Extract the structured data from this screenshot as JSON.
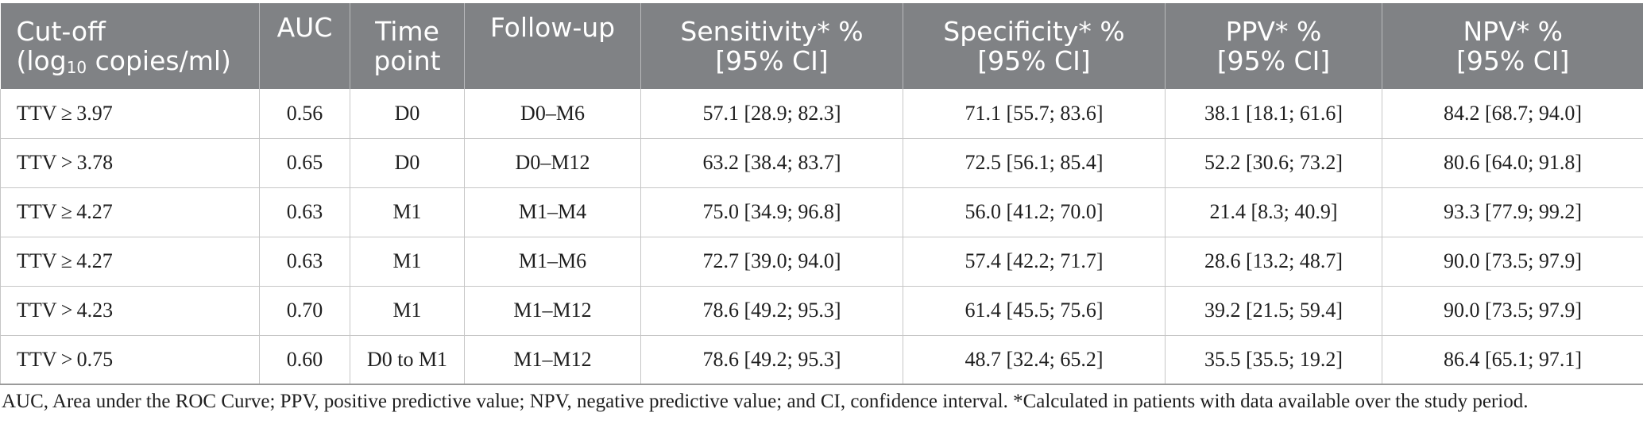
{
  "table": {
    "headers": [
      {
        "line1": "Cut-off",
        "line2_prefix": "(log",
        "line2_sub": "10",
        "line2_suffix": " copies/ml)"
      },
      {
        "line1": "AUC",
        "line2": ""
      },
      {
        "line1": "Time",
        "line2": "point"
      },
      {
        "line1": "Follow-up",
        "line2": ""
      },
      {
        "line1": "Sensitivity* %",
        "line2": "[95% CI]"
      },
      {
        "line1": "Specificity* %",
        "line2": "[95% CI]"
      },
      {
        "line1": "PPV* %",
        "line2": "[95% CI]"
      },
      {
        "line1": "NPV* %",
        "line2": "[95% CI]"
      }
    ],
    "rows": [
      [
        "TTV ≥ 3.97",
        "0.56",
        "D0",
        "D0–M6",
        "57.1 [28.9; 82.3]",
        "71.1 [55.7; 83.6]",
        "38.1 [18.1; 61.6]",
        "84.2 [68.7; 94.0]"
      ],
      [
        "TTV > 3.78",
        "0.65",
        "D0",
        "D0–M12",
        "63.2 [38.4; 83.7]",
        "72.5 [56.1; 85.4]",
        "52.2 [30.6; 73.2]",
        "80.6 [64.0; 91.8]"
      ],
      [
        "TTV ≥ 4.27",
        "0.63",
        "M1",
        "M1–M4",
        "75.0 [34.9; 96.8]",
        "56.0 [41.2; 70.0]",
        "21.4 [8.3; 40.9]",
        "93.3 [77.9; 99.2]"
      ],
      [
        "TTV ≥ 4.27",
        "0.63",
        "M1",
        "M1–M6",
        "72.7 [39.0; 94.0]",
        "57.4 [42.2; 71.7]",
        "28.6 [13.2; 48.7]",
        "90.0 [73.5; 97.9]"
      ],
      [
        "TTV > 4.23",
        "0.70",
        "M1",
        "M1–M12",
        "78.6 [49.2; 95.3]",
        "61.4 [45.5; 75.6]",
        "39.2 [21.5; 59.4]",
        "90.0 [73.5; 97.9]"
      ],
      [
        "TTV > 0.75",
        "0.60",
        "D0 to M1",
        "M1–M12",
        "78.6 [49.2; 95.3]",
        "48.7 [32.4; 65.2]",
        "35.5 [35.5; 19.2]",
        "86.4 [65.1; 97.1]"
      ]
    ]
  },
  "footnote": "AUC, Area under the ROC Curve; PPV, positive predictive value; NPV, negative predictive value; and CI, confidence interval. *Calculated in patients with data available over the study period."
}
